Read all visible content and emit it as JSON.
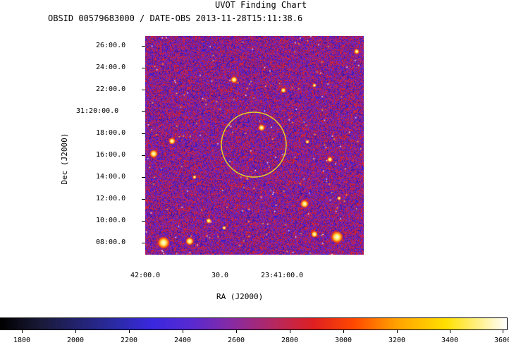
{
  "header": {
    "title": "UVOT Finding Chart",
    "subtitle": "OBSID 00579683000 / DATE-OBS 2013-11-28T15:11:38.6"
  },
  "axes": {
    "xlabel": "RA (J2000)",
    "ylabel": "Dec (J2000)",
    "ra_ticks": [
      "42:00.0",
      "30.0",
      "23:41:00.0"
    ],
    "dec_ticks": [
      "26:00.0",
      "24:00.0",
      "22:00.0",
      "31:20:00.0",
      "18:00.0",
      "16:00.0",
      "14:00.0",
      "12:00.0",
      "10:00.0",
      "08:00.0"
    ]
  },
  "colorbar": {
    "labels": [
      "1800",
      "2000",
      "2200",
      "2400",
      "2600",
      "2800",
      "3000",
      "3200",
      "3400",
      "3600"
    ]
  },
  "colors": {
    "circle": "#e8d020",
    "background": "#ffffff"
  }
}
